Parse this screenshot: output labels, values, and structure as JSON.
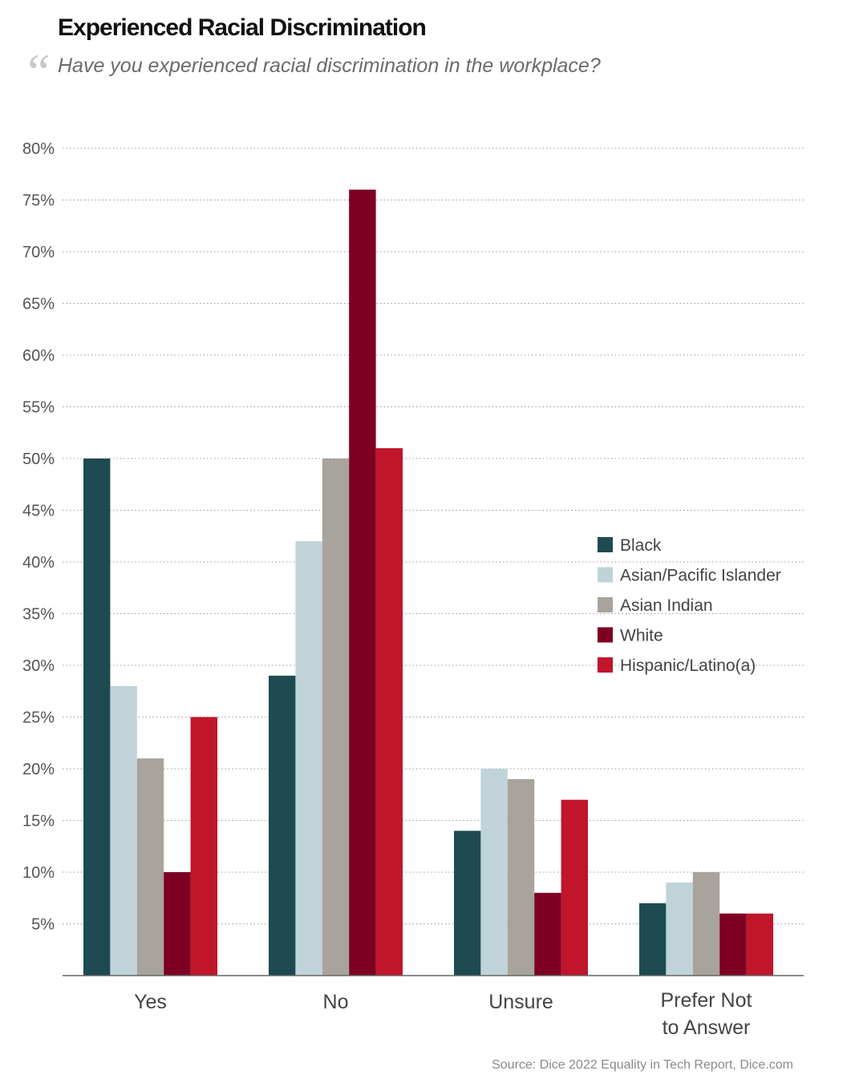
{
  "header": {
    "title": "Experienced Racial Discrimination",
    "quote_mark": "“",
    "subtitle": "Have you experienced racial discrimination in the workplace?"
  },
  "source": "Source: Dice 2022 Equality in Tech Report, Dice.com",
  "chart_data": {
    "type": "bar",
    "categories": [
      "Yes",
      "No",
      "Unsure",
      "Prefer Not to Answer"
    ],
    "category_lines": [
      [
        "Yes"
      ],
      [
        "No"
      ],
      [
        "Unsure"
      ],
      [
        "Prefer Not",
        "to Answer"
      ]
    ],
    "series": [
      {
        "name": "Black",
        "color": "#1e4a52",
        "values": [
          50,
          29,
          14,
          7
        ]
      },
      {
        "name": "Asian/Pacific Islander",
        "color": "#bfd3d8",
        "values": [
          28,
          42,
          20,
          9
        ]
      },
      {
        "name": "Asian Indian",
        "color": "#a8a39c",
        "values": [
          21,
          50,
          19,
          10
        ]
      },
      {
        "name": "White",
        "color": "#7d0023",
        "values": [
          10,
          76,
          8,
          6
        ]
      },
      {
        "name": "Hispanic/Latino(a)",
        "color": "#c0152a",
        "values": [
          25,
          51,
          17,
          6
        ]
      }
    ],
    "yticks": [
      "5%",
      "10%",
      "15%",
      "20%",
      "25%",
      "30%",
      "35%",
      "40%",
      "45%",
      "50%",
      "55%",
      "60%",
      "65%",
      "70%",
      "75%",
      "80%"
    ],
    "ylim": [
      0,
      80
    ],
    "grid": true,
    "legend": "right"
  }
}
